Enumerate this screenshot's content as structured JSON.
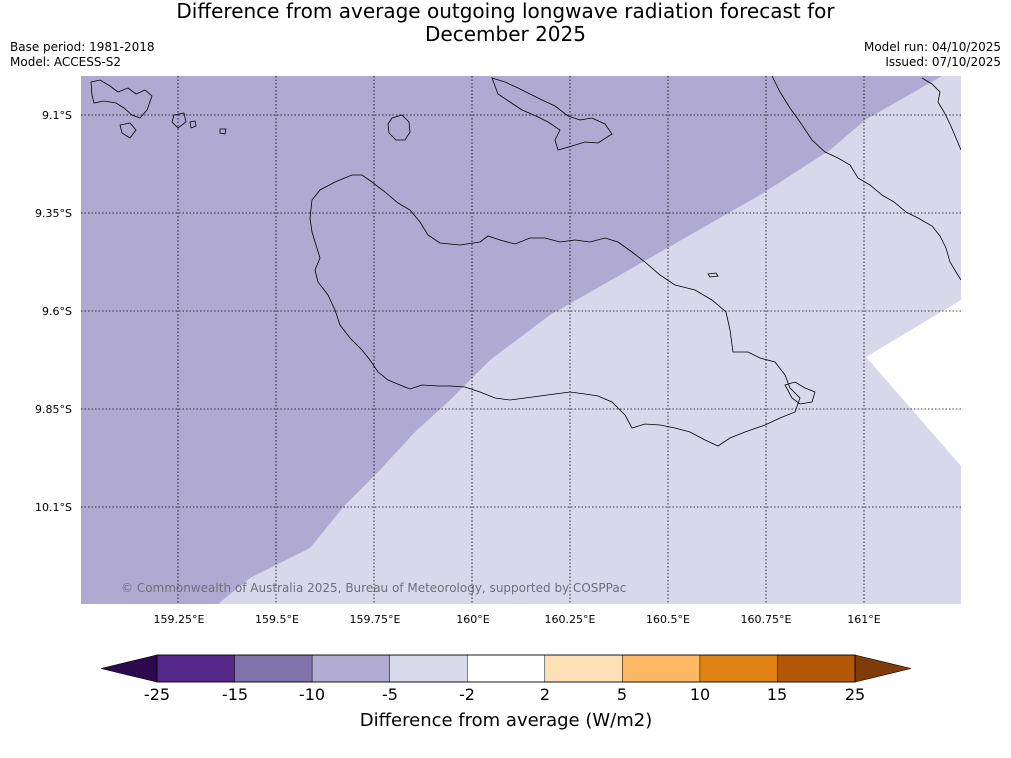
{
  "title": {
    "line1": "Difference from average outgoing longwave radiation forecast for",
    "line2": "December 2025"
  },
  "meta_left": {
    "base_period": "Base period: 1981-2018",
    "model": "Model: ACCESS-S2"
  },
  "meta_right": {
    "model_run": "Model run: 04/10/2025",
    "issued": "Issued: 07/10/2025"
  },
  "map": {
    "lat_ticks": [
      "9.1°S",
      "9.35°S",
      "9.6°S",
      "9.85°S",
      "10.1°S"
    ],
    "lon_ticks": [
      "159.25°E",
      "159.5°E",
      "159.75°E",
      "160°E",
      "160.25°E",
      "160.5°E",
      "160.75°E",
      "161°E"
    ],
    "credit": "© Commonwealth of Australia 2025, Bureau of Meteorology, supported by COSPPac",
    "colors": {
      "band_minus10_minus5": "#b0aad3",
      "band_minus5_minus2": "#d8d8ea",
      "band_neutral": "#ffffff",
      "coastline": "#000000"
    }
  },
  "colorbar": {
    "title": "Difference from average (W/m2)",
    "tick_labels": [
      "-25",
      "-15",
      "-10",
      "-5",
      "-2",
      "2",
      "5",
      "10",
      "15",
      "25"
    ],
    "low_extend_color": "#2d0a4e",
    "high_extend_color": "#7f3b08",
    "segment_colors": [
      "#542788",
      "#8073ac",
      "#b2abd2",
      "#d8daeb",
      "#ffffff",
      "#fee0b6",
      "#fdb863",
      "#e08214",
      "#b35806"
    ]
  }
}
